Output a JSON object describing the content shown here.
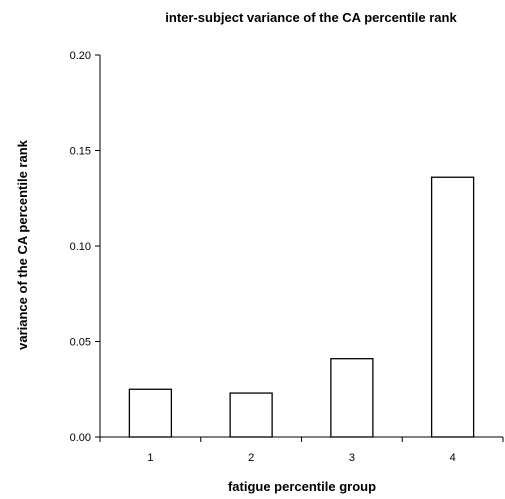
{
  "chart_data": {
    "type": "bar",
    "title": "inter-subject variance of the CA percentile rank",
    "xlabel": "fatigue percentile group",
    "ylabel": "variance of the CA percentile rank",
    "categories": [
      "1",
      "2",
      "3",
      "4"
    ],
    "values": [
      0.025,
      0.023,
      0.041,
      0.136
    ],
    "ylim": [
      0,
      0.2
    ],
    "yticks": [
      "0.00",
      "0.05",
      "0.10",
      "0.15",
      "0.20"
    ],
    "grid": false,
    "legend": "none",
    "bar_fill": "#ffffff",
    "bar_stroke": "#000000"
  }
}
